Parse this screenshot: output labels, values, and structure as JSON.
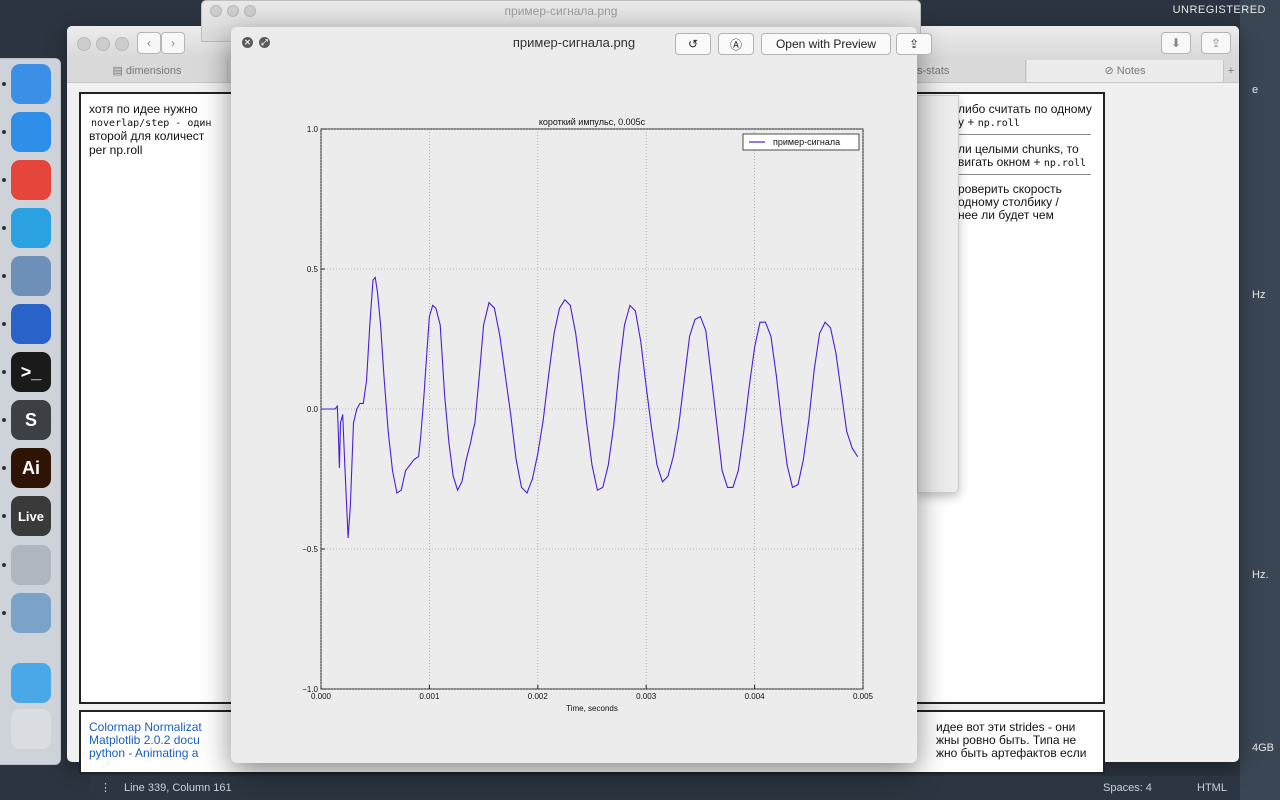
{
  "system": {
    "unregistered": "UNREGISTERED",
    "edge_labels": [
      "e",
      "Hz",
      "Hz.",
      "4GB"
    ]
  },
  "dock": {
    "apps": [
      {
        "name": "finder-icon",
        "color": "#3b8fe6"
      },
      {
        "name": "safari-icon",
        "color": "#2f8fe8"
      },
      {
        "name": "chrome-icon",
        "color": "#e5453a"
      },
      {
        "name": "telegram-icon",
        "color": "#2aa1e0"
      },
      {
        "name": "preview-icon",
        "color": "#6d8fb8"
      },
      {
        "name": "sourcetree-icon",
        "color": "#2a63c7"
      },
      {
        "name": "terminal-icon",
        "color": "#1a1a1a",
        "glyph": ">_"
      },
      {
        "name": "sublime-text-icon",
        "color": "#3c3f44",
        "glyph": "S"
      },
      {
        "name": "illustrator-icon",
        "color": "#2f1405",
        "glyph": "Ai"
      },
      {
        "name": "ableton-live-icon",
        "color": "#3a3a3a",
        "glyph": "Live"
      },
      {
        "name": "launchpad-rocket-icon",
        "color": "#b0b6bd"
      },
      {
        "name": "image-capture-icon",
        "color": "#7ba3c9"
      },
      {
        "name": "downloads-folder-icon",
        "color": "#4aa7e8"
      },
      {
        "name": "trash-icon",
        "color": "#d9dde2"
      }
    ]
  },
  "editor": {
    "tabs": [
      "dimensions",
      "s-stats",
      "Notes"
    ],
    "tab_add": "+",
    "left_lines": [
      "хотя по идее нужно",
      "noverlap/step - один",
      "второй для количест",
      "per np.roll"
    ],
    "right_blocks": [
      {
        "line1": "либо считать по одному",
        "line2_prefix": "у +",
        "line2_code": "np.roll"
      },
      {
        "line1": "ли целыми chunks, то",
        "line2_prefix": "вигать окном +",
        "line2_code": "np.roll"
      },
      {
        "line1": "роверить скорость",
        "line2_prefix": "одному столбику /",
        "line2_code": "",
        "line3": "нее ли будет чем"
      }
    ],
    "bottom_links": [
      "Colormap Normalizat",
      "Matplotlib 2.0.2 docu",
      "python - Animating a"
    ],
    "bottom_right": [
      "идее вот эти strides - они",
      "жны ровно быть. Типа не",
      "жно быть артефактов если"
    ],
    "status": {
      "position": "Line 339, Column 161",
      "spaces": "Spaces: 4",
      "syntax": "HTML"
    }
  },
  "finder_window": {
    "title": "пример-сигнала.png"
  },
  "quicklook": {
    "title": "пример-сигнала.png",
    "open_with": "Open with Preview"
  },
  "chart_data": {
    "type": "line",
    "title": "короткий импульс, 0.005c",
    "xlabel": "Time, seconds",
    "ylabel": "",
    "xlim": [
      0.0,
      0.005
    ],
    "ylim": [
      -1.0,
      1.0
    ],
    "xticks": [
      "0.000",
      "0.001",
      "0.002",
      "0.003",
      "0.004",
      "0.005"
    ],
    "yticks": [
      "1.0",
      "0.5",
      "0.0",
      "−0.5",
      "−1.0"
    ],
    "grid": true,
    "legend": "top-right",
    "color": "#4b1fd1",
    "series": [
      {
        "name": "пример-сигнала",
        "x": [
          0.0,
          0.00013,
          0.00015,
          0.00016,
          0.00017,
          0.00018,
          0.0002,
          0.00022,
          0.00025,
          0.00027,
          0.0003,
          0.00033,
          0.00036,
          0.00039,
          0.00042,
          0.00045,
          0.00048,
          0.0005,
          0.00052,
          0.00055,
          0.00058,
          0.00062,
          0.00066,
          0.0007,
          0.00074,
          0.00078,
          0.00082,
          0.00086,
          0.0009,
          0.00092,
          0.00095,
          0.00098,
          0.001,
          0.00103,
          0.00106,
          0.0011,
          0.00114,
          0.00118,
          0.00122,
          0.00126,
          0.0013,
          0.00134,
          0.00138,
          0.0014,
          0.00142,
          0.00146,
          0.0015,
          0.00155,
          0.0016,
          0.00165,
          0.0017,
          0.00175,
          0.0018,
          0.00185,
          0.0019,
          0.00195,
          0.002,
          0.00205,
          0.0021,
          0.00215,
          0.0022,
          0.00225,
          0.0023,
          0.00235,
          0.0024,
          0.00245,
          0.0025,
          0.00255,
          0.0026,
          0.00265,
          0.0027,
          0.00275,
          0.0028,
          0.00285,
          0.0029,
          0.00295,
          0.003,
          0.00305,
          0.0031,
          0.00315,
          0.0032,
          0.00325,
          0.0033,
          0.00335,
          0.0034,
          0.00345,
          0.0035,
          0.00355,
          0.0036,
          0.00365,
          0.0037,
          0.00375,
          0.0038,
          0.00385,
          0.0039,
          0.00395,
          0.004,
          0.00405,
          0.0041,
          0.00415,
          0.0042,
          0.00425,
          0.0043,
          0.00435,
          0.0044,
          0.00445,
          0.0045,
          0.00455,
          0.0046,
          0.00465,
          0.0047,
          0.00475,
          0.0048,
          0.00485,
          0.0049,
          0.00495
        ],
        "y": [
          0.0,
          0.0,
          0.01,
          -0.08,
          -0.21,
          -0.05,
          -0.02,
          -0.2,
          -0.46,
          -0.35,
          -0.05,
          0.0,
          0.02,
          0.02,
          0.1,
          0.3,
          0.46,
          0.47,
          0.42,
          0.3,
          0.12,
          -0.08,
          -0.22,
          -0.3,
          -0.29,
          -0.22,
          -0.2,
          -0.18,
          -0.17,
          -0.1,
          0.05,
          0.22,
          0.33,
          0.37,
          0.36,
          0.3,
          0.05,
          -0.12,
          -0.24,
          -0.29,
          -0.26,
          -0.18,
          -0.12,
          -0.08,
          -0.05,
          0.12,
          0.3,
          0.38,
          0.36,
          0.26,
          0.12,
          -0.02,
          -0.18,
          -0.28,
          -0.3,
          -0.25,
          -0.16,
          -0.04,
          0.12,
          0.27,
          0.36,
          0.39,
          0.37,
          0.27,
          0.12,
          -0.05,
          -0.2,
          -0.29,
          -0.28,
          -0.2,
          -0.06,
          0.14,
          0.3,
          0.37,
          0.35,
          0.24,
          0.08,
          -0.07,
          -0.2,
          -0.26,
          -0.24,
          -0.17,
          -0.06,
          0.1,
          0.26,
          0.32,
          0.33,
          0.28,
          0.12,
          -0.05,
          -0.22,
          -0.28,
          -0.28,
          -0.22,
          -0.08,
          0.08,
          0.22,
          0.31,
          0.31,
          0.26,
          0.12,
          -0.05,
          -0.2,
          -0.28,
          -0.27,
          -0.18,
          -0.04,
          0.14,
          0.27,
          0.31,
          0.29,
          0.2,
          0.06,
          -0.08,
          -0.14,
          -0.17
        ]
      }
    ]
  }
}
